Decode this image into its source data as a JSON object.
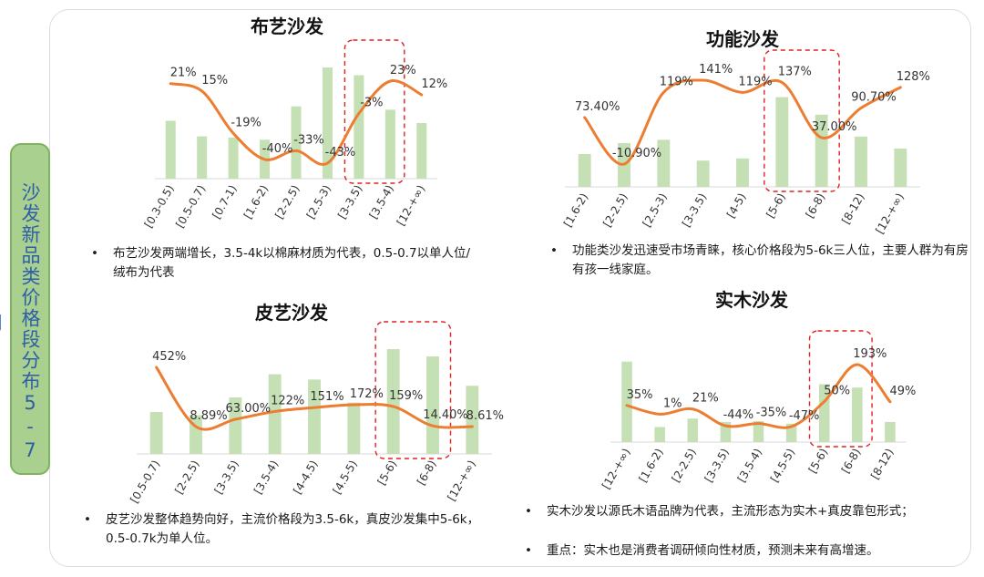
{
  "side_label": "沙发新品类价格段分布5-7月",
  "notes": {
    "fabric": [
      "布艺沙发两端增长，3.5-4k以棉麻材质为代表，0.5-0.7以单人位/绒布为代表"
    ],
    "functional": [
      "功能类沙发迅速受市场青睐，核心价格段为5-6k三人位，主要人群为有房有孩一线家庭。"
    ],
    "leather": [
      "皮艺沙发整体趋势向好，主流价格段为3.5-6k，真皮沙发集中5-6k，0.5-0.7k为单人位。"
    ],
    "wood": [
      "实木沙发以源氏木语品牌为代表，主流形态为实木+真皮靠包形式；",
      "重点：实木也是消费者调研倾向性材质，预测未来有高增速。"
    ]
  },
  "colors": {
    "bar": "#c5e0b4",
    "line": "#ed7d31",
    "highlight": "#e02020",
    "side_tab": "#a9d08e",
    "side_text": "#2e5ea9"
  },
  "chart_data": [
    {
      "id": "fabric",
      "type": "bar+line",
      "title": "布艺沙发",
      "categories": [
        "[0.3-0.5)",
        "[0.5-0.7)",
        "[0.7-1)",
        "[1.6-2)",
        "[2-2.5)",
        "[2.5-3)",
        "[3-3.5)",
        "[3.5-4)",
        "[12-+∞)"
      ],
      "bar_values": [
        0.52,
        0.38,
        0.37,
        0.35,
        0.65,
        1.0,
        0.93,
        0.62,
        0.5
      ],
      "line_values": [
        21,
        15,
        -19,
        -40,
        -33,
        -43,
        -3,
        23,
        12
      ],
      "line_labels": [
        "21%",
        "15%",
        "-19%",
        "-40%",
        "-33%",
        "-43%",
        "-3%",
        "23%",
        "12%"
      ],
      "highlight": [
        6,
        7
      ]
    },
    {
      "id": "functional",
      "type": "bar+line",
      "title": "功能沙发",
      "categories": [
        "[1.6-2)",
        "[2-2.5)",
        "[2.5-3)",
        "[3-3.5)",
        "[4-5)",
        "[5-6)",
        "[6-8)",
        "[8-12)",
        "[12-+∞)"
      ],
      "bar_values": [
        0.3,
        0.4,
        0.43,
        0.24,
        0.26,
        0.82,
        0.66,
        0.46,
        0.35
      ],
      "line_values": [
        73.4,
        -10.9,
        119,
        141,
        119,
        137,
        37,
        90.7,
        128
      ],
      "line_labels": [
        "73.40%",
        "-10.90%",
        "119%",
        "141%",
        "119%",
        "137%",
        "37.00%",
        "90.70%",
        "128%"
      ],
      "highlight": [
        5,
        6
      ]
    },
    {
      "id": "leather",
      "type": "bar+line",
      "title": "皮艺沙发",
      "categories": [
        "[0.5-0.7)",
        "[2-2.5)",
        "[3-3.5)",
        "[3.5-4)",
        "[4-4.5)",
        "[4.5-5)",
        "[5-6)",
        "[6-8)",
        "[12-+∞)"
      ],
      "bar_values": [
        0.4,
        0.37,
        0.54,
        0.76,
        0.71,
        0.49,
        1.0,
        0.93,
        0.65
      ],
      "line_values": [
        452,
        8.89,
        63,
        122,
        151,
        172,
        159,
        14.4,
        8.61
      ],
      "line_labels": [
        "452%",
        "8.89%",
        "63.00%",
        "122%",
        "151%",
        "172%",
        "159%",
        "14.40%",
        "8.61%"
      ],
      "highlight": [
        6,
        7
      ]
    },
    {
      "id": "wood",
      "type": "bar+line",
      "title": "实木沙发",
      "categories": [
        "[12-+∞)",
        "[1.6-2)",
        "[2-2.5)",
        "[3-3.5)",
        "[3.5-4)",
        "[4.5-5)",
        "[5-6)",
        "[6-8)",
        "[8-12)"
      ],
      "bar_values": [
        0.96,
        0.18,
        0.28,
        0.24,
        0.25,
        0.22,
        0.69,
        0.65,
        0.24
      ],
      "line_values": [
        35,
        1,
        21,
        -44,
        -35,
        -47,
        50,
        193,
        49
      ],
      "line_labels": [
        "35%",
        "1%",
        "21%",
        "-44%",
        "-35%",
        "-47%",
        "50%",
        "193%",
        "49%"
      ],
      "highlight": [
        6,
        7
      ]
    }
  ]
}
